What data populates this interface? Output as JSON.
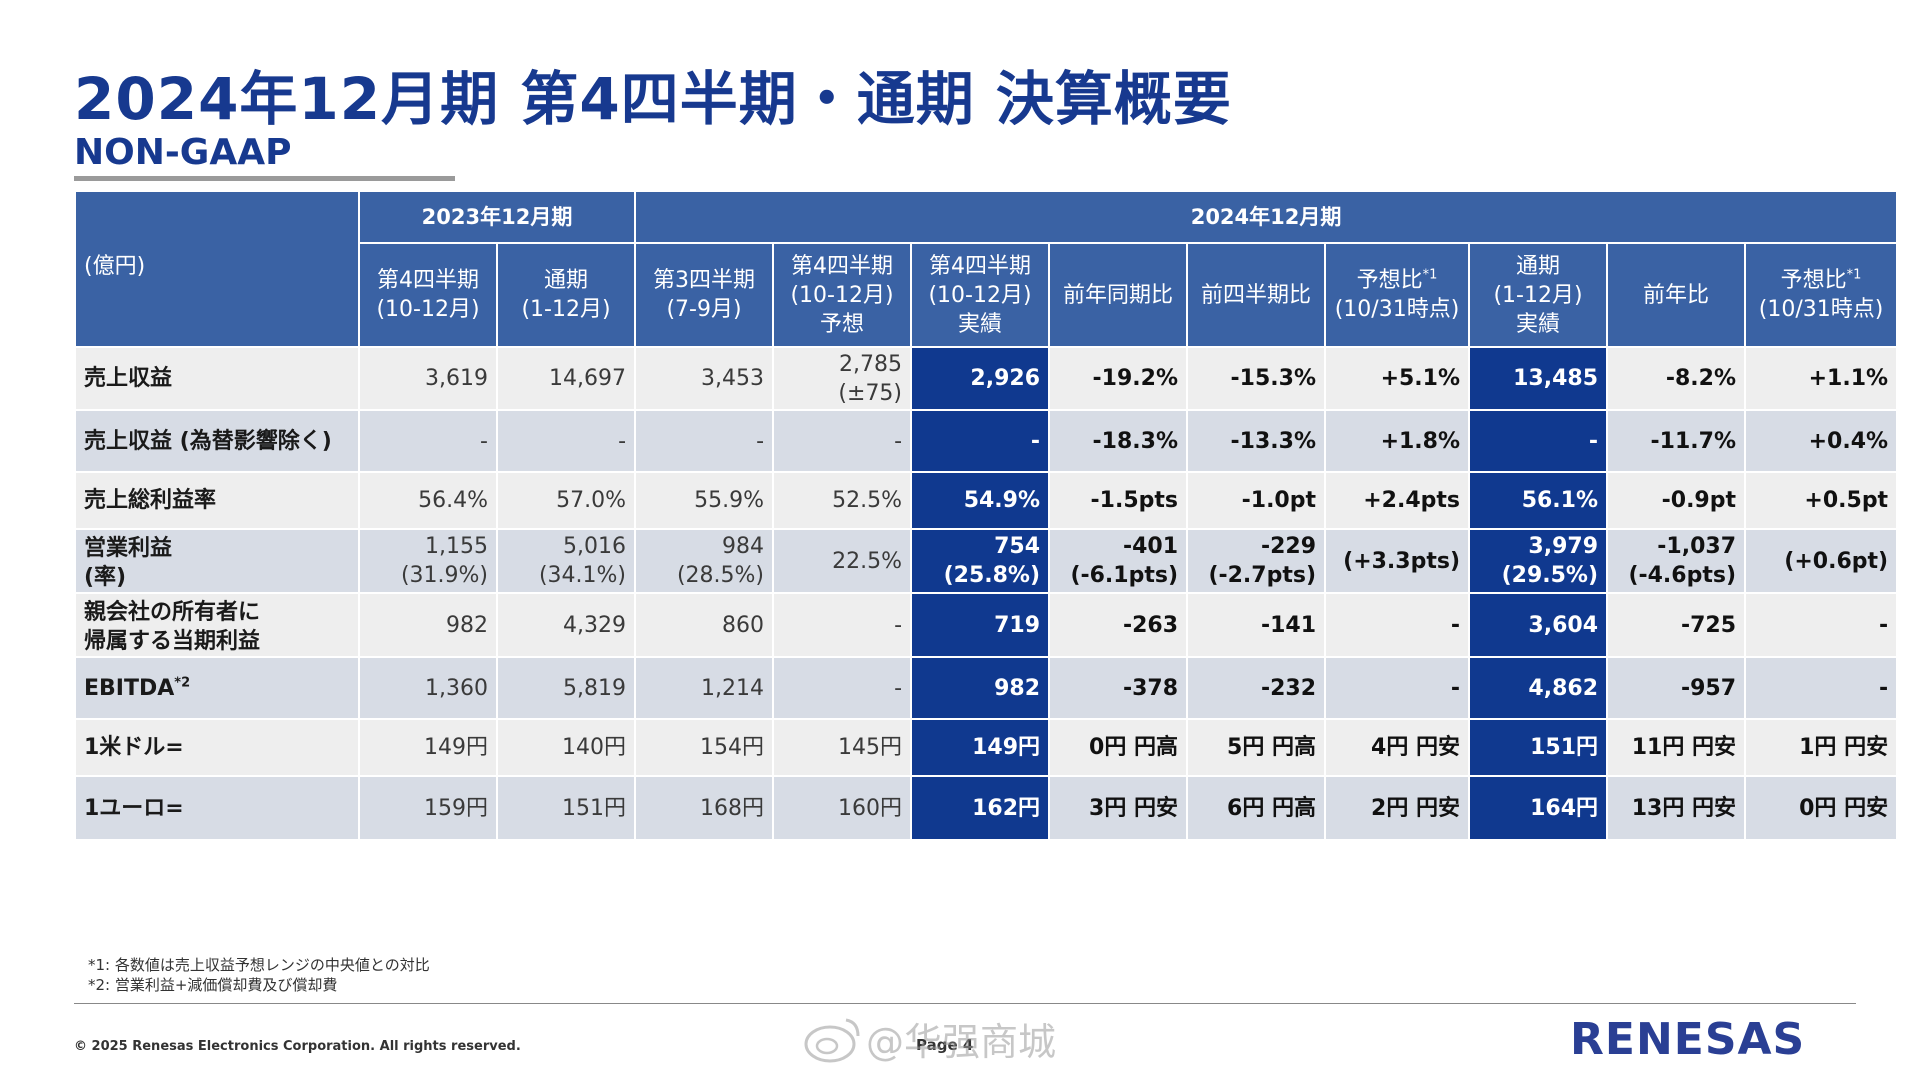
{
  "header": {
    "title": "2024年12月期 第4四半期・通期 決算概要",
    "subtitle": "NON-GAAP"
  },
  "table": {
    "unit": "(億円)",
    "group_2023": "2023年12月期",
    "group_2024": "2024年12月期",
    "columns": [
      {
        "line1": "第4四半期",
        "line2": "(10-12月)",
        "line3": ""
      },
      {
        "line1": "通期",
        "line2": "(1-12月)",
        "line3": ""
      },
      {
        "line1": "第3四半期",
        "line2": "(7-9月)",
        "line3": ""
      },
      {
        "line1": "第4四半期",
        "line2": "(10-12月)",
        "line3": "予想"
      },
      {
        "line1": "第4四半期",
        "line2": "(10-12月)",
        "line3": "実績"
      },
      {
        "line1": "前年同期比",
        "line2": "",
        "line3": ""
      },
      {
        "line1": "前四半期比",
        "line2": "",
        "line3": ""
      },
      {
        "line1": "予想比",
        "sup": "*1",
        "line2": "(10/31時点)",
        "line3": ""
      },
      {
        "line1": "通期",
        "line2": "(1-12月)",
        "line3": "実績"
      },
      {
        "line1": "前年比",
        "line2": "",
        "line3": ""
      },
      {
        "line1": "予想比",
        "sup": "*1",
        "line2": "(10/31時点)",
        "line3": ""
      }
    ],
    "rows": [
      {
        "label1": "売上収益",
        "label2": "",
        "cells": [
          {
            "v1": "3,619",
            "v2": ""
          },
          {
            "v1": "14,697",
            "v2": ""
          },
          {
            "v1": "3,453",
            "v2": ""
          },
          {
            "v1": "2,785",
            "v2": "(±75)"
          },
          {
            "v1": "2,926",
            "v2": ""
          },
          {
            "v1": "-19.2%",
            "v2": ""
          },
          {
            "v1": "-15.3%",
            "v2": ""
          },
          {
            "v1": "+5.1%",
            "v2": ""
          },
          {
            "v1": "13,485",
            "v2": ""
          },
          {
            "v1": "-8.2%",
            "v2": ""
          },
          {
            "v1": "+1.1%",
            "v2": ""
          }
        ]
      },
      {
        "label1": "売上収益 (為替影響除く)",
        "label2": "",
        "cells": [
          {
            "v1": "-",
            "v2": ""
          },
          {
            "v1": "-",
            "v2": ""
          },
          {
            "v1": "-",
            "v2": ""
          },
          {
            "v1": "-",
            "v2": ""
          },
          {
            "v1": "-",
            "v2": ""
          },
          {
            "v1": "-18.3%",
            "v2": ""
          },
          {
            "v1": "-13.3%",
            "v2": ""
          },
          {
            "v1": "+1.8%",
            "v2": ""
          },
          {
            "v1": "-",
            "v2": ""
          },
          {
            "v1": "-11.7%",
            "v2": ""
          },
          {
            "v1": "+0.4%",
            "v2": ""
          }
        ]
      },
      {
        "label1": "売上総利益率",
        "label2": "",
        "cells": [
          {
            "v1": "56.4%",
            "v2": ""
          },
          {
            "v1": "57.0%",
            "v2": ""
          },
          {
            "v1": "55.9%",
            "v2": ""
          },
          {
            "v1": "52.5%",
            "v2": ""
          },
          {
            "v1": "54.9%",
            "v2": ""
          },
          {
            "v1": "-1.5pts",
            "v2": ""
          },
          {
            "v1": "-1.0pt",
            "v2": ""
          },
          {
            "v1": "+2.4pts",
            "v2": ""
          },
          {
            "v1": "56.1%",
            "v2": ""
          },
          {
            "v1": "-0.9pt",
            "v2": ""
          },
          {
            "v1": "+0.5pt",
            "v2": ""
          }
        ]
      },
      {
        "label1": "営業利益",
        "label2": "(率)",
        "cells": [
          {
            "v1": "1,155",
            "v2": "(31.9%)"
          },
          {
            "v1": "5,016",
            "v2": "(34.1%)"
          },
          {
            "v1": "984",
            "v2": "(28.5%)"
          },
          {
            "v1": "22.5%",
            "v2": ""
          },
          {
            "v1": "754",
            "v2": "(25.8%)"
          },
          {
            "v1": "-401",
            "v2": "(-6.1pts)"
          },
          {
            "v1": "-229",
            "v2": "(-2.7pts)"
          },
          {
            "v1": "(+3.3pts)",
            "v2": ""
          },
          {
            "v1": "3,979",
            "v2": "(29.5%)"
          },
          {
            "v1": "-1,037",
            "v2": "(-4.6pts)"
          },
          {
            "v1": "(+0.6pt)",
            "v2": ""
          }
        ]
      },
      {
        "label1": "親会社の所有者に",
        "label2": "帰属する当期利益",
        "cells": [
          {
            "v1": "982",
            "v2": ""
          },
          {
            "v1": "4,329",
            "v2": ""
          },
          {
            "v1": "860",
            "v2": ""
          },
          {
            "v1": "-",
            "v2": ""
          },
          {
            "v1": "719",
            "v2": ""
          },
          {
            "v1": "-263",
            "v2": ""
          },
          {
            "v1": "-141",
            "v2": ""
          },
          {
            "v1": "-",
            "v2": ""
          },
          {
            "v1": "3,604",
            "v2": ""
          },
          {
            "v1": "-725",
            "v2": ""
          },
          {
            "v1": "-",
            "v2": ""
          }
        ]
      },
      {
        "label1": "EBITDA",
        "label_sup": "*2",
        "label2": "",
        "cells": [
          {
            "v1": "1,360",
            "v2": ""
          },
          {
            "v1": "5,819",
            "v2": ""
          },
          {
            "v1": "1,214",
            "v2": ""
          },
          {
            "v1": "-",
            "v2": ""
          },
          {
            "v1": "982",
            "v2": ""
          },
          {
            "v1": "-378",
            "v2": ""
          },
          {
            "v1": "-232",
            "v2": ""
          },
          {
            "v1": "-",
            "v2": ""
          },
          {
            "v1": "4,862",
            "v2": ""
          },
          {
            "v1": "-957",
            "v2": ""
          },
          {
            "v1": "-",
            "v2": ""
          }
        ]
      },
      {
        "label1": "1米ドル=",
        "label2": "",
        "cells": [
          {
            "v1": "149円",
            "v2": ""
          },
          {
            "v1": "140円",
            "v2": ""
          },
          {
            "v1": "154円",
            "v2": ""
          },
          {
            "v1": "145円",
            "v2": ""
          },
          {
            "v1": "149円",
            "v2": ""
          },
          {
            "v1": "0円 円高",
            "v2": ""
          },
          {
            "v1": "5円 円高",
            "v2": ""
          },
          {
            "v1": "4円 円安",
            "v2": ""
          },
          {
            "v1": "151円",
            "v2": ""
          },
          {
            "v1": "11円 円安",
            "v2": ""
          },
          {
            "v1": "1円 円安",
            "v2": ""
          }
        ]
      },
      {
        "label1": "1ユーロ=",
        "label2": "",
        "cells": [
          {
            "v1": "159円",
            "v2": ""
          },
          {
            "v1": "151円",
            "v2": ""
          },
          {
            "v1": "168円",
            "v2": ""
          },
          {
            "v1": "160円",
            "v2": ""
          },
          {
            "v1": "162円",
            "v2": ""
          },
          {
            "v1": "3円 円安",
            "v2": ""
          },
          {
            "v1": "6円 円高",
            "v2": ""
          },
          {
            "v1": "2円 円安",
            "v2": ""
          },
          {
            "v1": "164円",
            "v2": ""
          },
          {
            "v1": "13円 円安",
            "v2": ""
          },
          {
            "v1": "0円 円安",
            "v2": ""
          }
        ]
      }
    ]
  },
  "footnotes": [
    "*1: 各数値は売上収益予想レンジの中央値との対比",
    "*2: 営業利益+減価償却費及び償却費"
  ],
  "footer": {
    "copyright": "© 2025 Renesas Electronics Corporation. All rights reserved.",
    "page": "Page 4",
    "watermark": "@华强商城",
    "logo_text": "RENESAS"
  },
  "colors": {
    "title": "#17398f",
    "header_bg": "#3a62a4",
    "highlight_bg": "#10398f",
    "row_light": "#eeeeee",
    "row_dark": "#d7dce5"
  }
}
